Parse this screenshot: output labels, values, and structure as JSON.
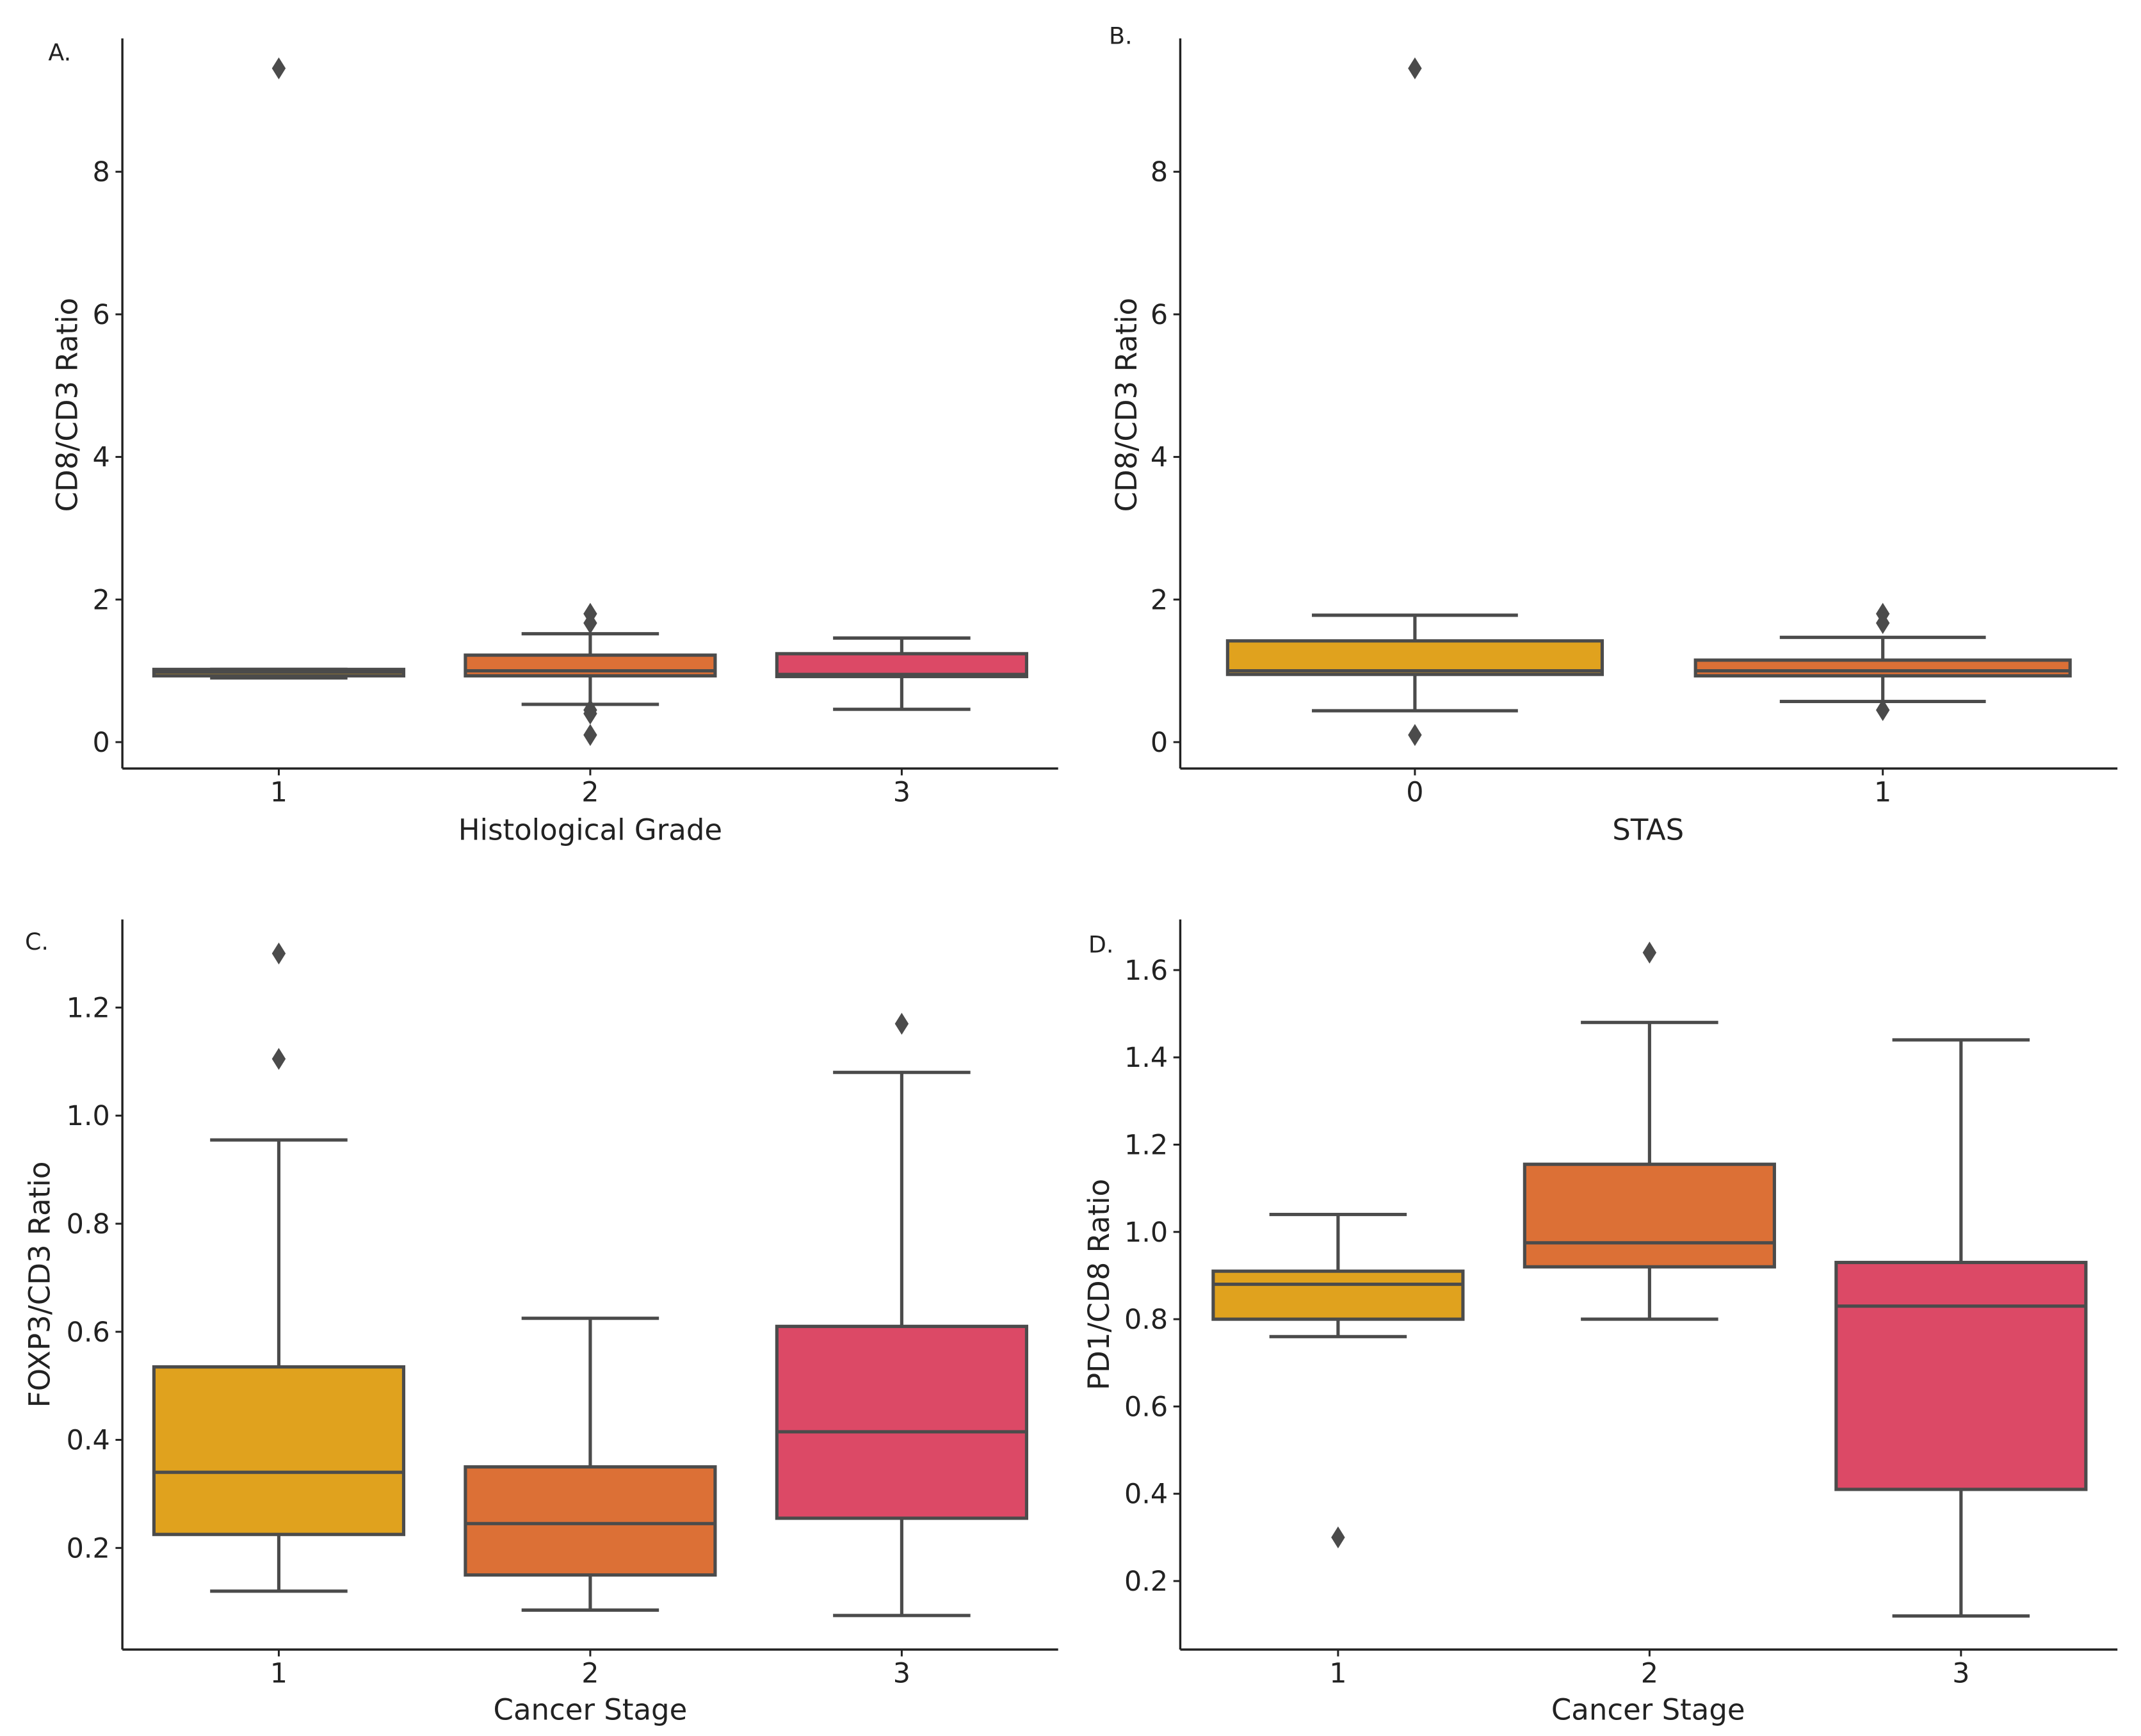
{
  "colors": {
    "c1": "#E0A21E",
    "c2": "#DC7036",
    "c3": "#DC4966",
    "edge": "#4B4B4B",
    "axis": "#222222"
  },
  "chart_data": [
    {
      "type": "box",
      "panel_label": "A.",
      "xlabel": "Histological Grade",
      "ylabel": "CD8/CD3 Ratio",
      "ylim": [
        -0.37,
        9.87
      ],
      "yticks": [
        0,
        2,
        4,
        6,
        8
      ],
      "ytick_labels": [
        "0",
        "2",
        "4",
        "6",
        "8"
      ],
      "categories": [
        "1",
        "2",
        "3"
      ],
      "boxes": [
        {
          "whisker_low": 0.9,
          "q1": 0.93,
          "median": 0.98,
          "q3": 1.02,
          "whisker_high": 1.02,
          "outliers": [
            9.45
          ]
        },
        {
          "whisker_low": 0.53,
          "q1": 0.93,
          "median": 1.0,
          "q3": 1.22,
          "whisker_high": 1.52,
          "outliers": [
            1.8,
            1.67,
            0.45,
            0.4,
            0.1
          ]
        },
        {
          "whisker_low": 0.46,
          "q1": 0.92,
          "median": 0.95,
          "q3": 1.24,
          "whisker_high": 1.46,
          "outliers": []
        }
      ]
    },
    {
      "type": "box",
      "panel_label": "B.",
      "xlabel": "STAS",
      "ylabel": "CD8/CD3 Ratio",
      "ylim": [
        -0.37,
        9.87
      ],
      "yticks": [
        0,
        2,
        4,
        6,
        8
      ],
      "ytick_labels": [
        "0",
        "2",
        "4",
        "6",
        "8"
      ],
      "categories": [
        "0",
        "1"
      ],
      "boxes": [
        {
          "whisker_low": 0.44,
          "q1": 0.95,
          "median": 1.0,
          "q3": 1.42,
          "whisker_high": 1.78,
          "outliers": [
            0.1,
            9.45
          ]
        },
        {
          "whisker_low": 0.57,
          "q1": 0.93,
          "median": 1.0,
          "q3": 1.15,
          "whisker_high": 1.47,
          "outliers": [
            1.8,
            1.67,
            0.45
          ]
        }
      ]
    },
    {
      "type": "box",
      "panel_label": "C.",
      "xlabel": "Cancer Stage",
      "ylabel": "FOXP3/CD3 Ratio",
      "ylim": [
        0.012,
        1.363
      ],
      "yticks": [
        0.2,
        0.4,
        0.6,
        0.8,
        1.0,
        1.2
      ],
      "ytick_labels": [
        "0.2",
        "0.4",
        "0.6",
        "0.8",
        "1.0",
        "1.2"
      ],
      "categories": [
        "1",
        "2",
        "3"
      ],
      "boxes": [
        {
          "whisker_low": 0.12,
          "q1": 0.225,
          "median": 0.34,
          "q3": 0.535,
          "whisker_high": 0.955,
          "outliers": [
            1.3,
            1.105
          ]
        },
        {
          "whisker_low": 0.085,
          "q1": 0.15,
          "median": 0.245,
          "q3": 0.35,
          "whisker_high": 0.625,
          "outliers": []
        },
        {
          "whisker_low": 0.075,
          "q1": 0.255,
          "median": 0.415,
          "q3": 0.61,
          "whisker_high": 1.08,
          "outliers": [
            1.17
          ]
        }
      ]
    },
    {
      "type": "box",
      "panel_label": "D.",
      "xlabel": "Cancer Stage",
      "ylabel": "PD1/CD8 Ratio",
      "ylim": [
        0.043,
        1.716
      ],
      "yticks": [
        0.2,
        0.4,
        0.6,
        0.8,
        1.0,
        1.2,
        1.4,
        1.6
      ],
      "ytick_labels": [
        "0.2",
        "0.4",
        "0.6",
        "0.8",
        "1.0",
        "1.2",
        "1.4",
        "1.6"
      ],
      "categories": [
        "1",
        "2",
        "3"
      ],
      "boxes": [
        {
          "whisker_low": 0.76,
          "q1": 0.8,
          "median": 0.88,
          "q3": 0.91,
          "whisker_high": 1.04,
          "outliers": [
            0.3
          ]
        },
        {
          "whisker_low": 0.8,
          "q1": 0.92,
          "median": 0.975,
          "q3": 1.155,
          "whisker_high": 1.48,
          "outliers": [
            1.64
          ]
        },
        {
          "whisker_low": 0.12,
          "q1": 0.41,
          "median": 0.83,
          "q3": 0.93,
          "whisker_high": 1.44,
          "outliers": []
        }
      ]
    }
  ]
}
